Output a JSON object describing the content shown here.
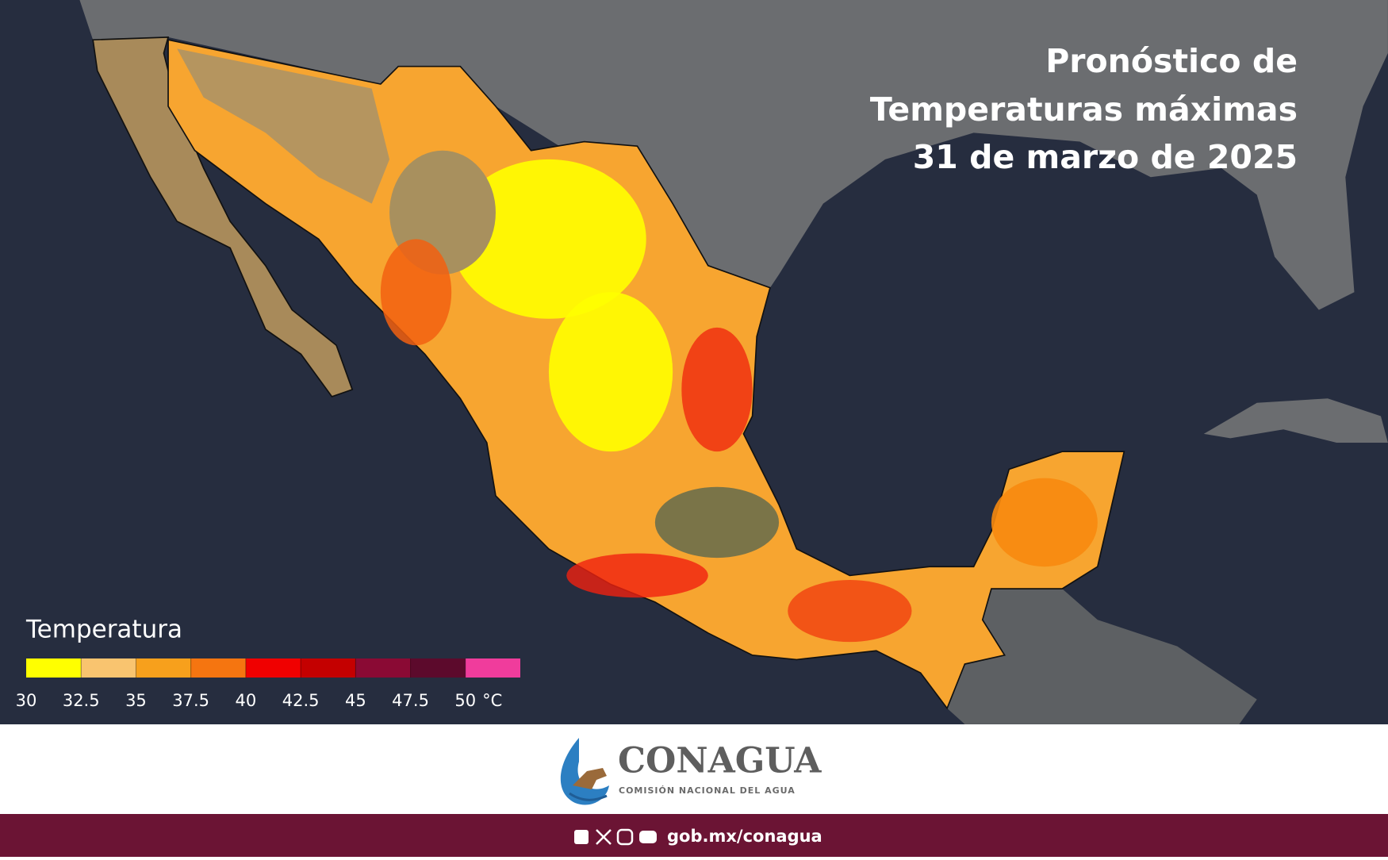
{
  "header": {
    "title_lines": [
      "Pronóstico de",
      "Temperaturas máximas",
      "31 de marzo de 2025"
    ]
  },
  "legend": {
    "title": "Temperatura",
    "unit": "°C",
    "colors": [
      "#ffff00",
      "#f9c46f",
      "#f7a01c",
      "#f57510",
      "#f00000",
      "#c40000",
      "#8a0a34",
      "#5c0a2c",
      "#f03c9c"
    ],
    "ticks": [
      30,
      32.5,
      35,
      37.5,
      40,
      42.5,
      45,
      47.5,
      50
    ]
  },
  "footer": {
    "logo_name": "CONAGUA",
    "logo_subtitle": "COMISIÓN NACIONAL DEL AGUA",
    "url": "gob.mx/conagua"
  }
}
